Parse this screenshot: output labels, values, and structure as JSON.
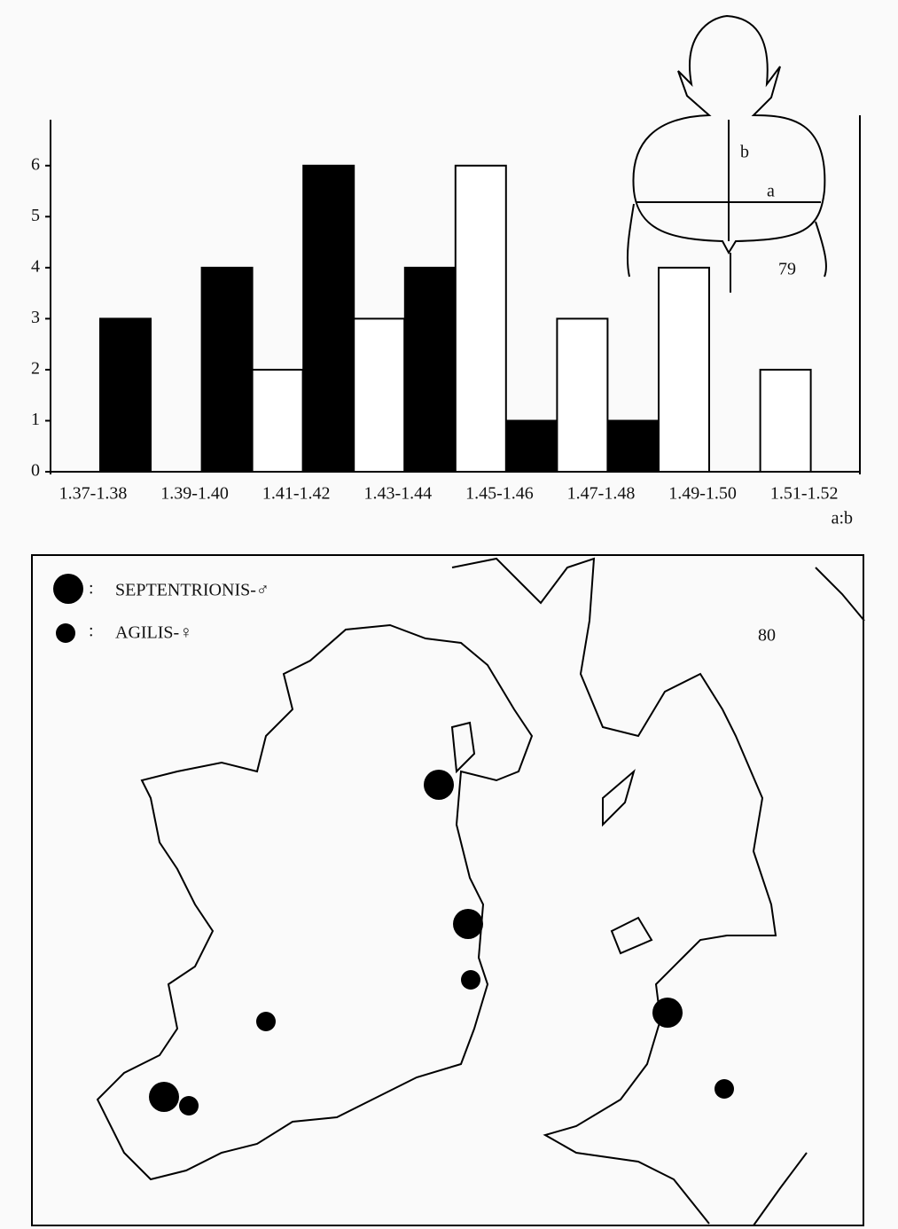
{
  "chart_data": {
    "type": "bar",
    "categories": [
      "1.37-1.38",
      "1.39-1.40",
      "1.41-1.42",
      "1.43-1.44",
      "1.45-1.46",
      "1.47-1.48",
      "1.49-1.50",
      "1.51-1.52"
    ],
    "series": [
      {
        "color": "#000000",
        "values": [
          3,
          4,
          6,
          4,
          1,
          1,
          0,
          0
        ]
      },
      {
        "color": "#ffffff",
        "values": [
          0,
          2,
          3,
          6,
          3,
          4,
          2,
          0
        ]
      }
    ],
    "xlabel": "a:b",
    "ylim": [
      0,
      6.9
    ],
    "yticks": [
      0,
      1,
      2,
      3,
      4,
      5,
      6
    ],
    "annotations": [
      "b",
      "a",
      "79"
    ]
  },
  "map": {
    "legend": [
      "SEPTENTRIONIS-♂",
      "AGILIS-♀"
    ],
    "label": "80"
  }
}
